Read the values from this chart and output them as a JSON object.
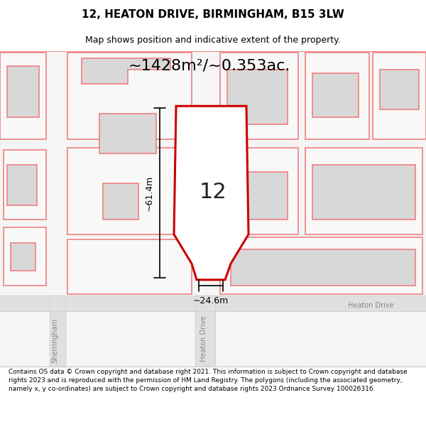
{
  "title": "12, HEATON DRIVE, BIRMINGHAM, B15 3LW",
  "subtitle": "Map shows position and indicative extent of the property.",
  "area_text": "~1428m²/~0.353ac.",
  "label_12": "12",
  "dim_height": "~61.4m",
  "dim_width": "~24.6m",
  "road_label_1": "Heaton Drive",
  "road_label_2": "Heaton Drive",
  "road_label_3": "Sherringham",
  "footer": "Contains OS data © Crown copyright and database right 2021. This information is subject to Crown copyright and database rights 2023 and is reproduced with the permission of HM Land Registry. The polygons (including the associated geometry, namely x, y co-ordinates) are subject to Crown copyright and database rights 2023 Ordnance Survey 100026316.",
  "bg_color": "#ffffff",
  "map_bg": "#f5f5f5",
  "plot_outline_color": "#cc0000",
  "other_outline_color": "#f08080",
  "dim_line_color": "#000000",
  "road_color": "#e8e8e8"
}
